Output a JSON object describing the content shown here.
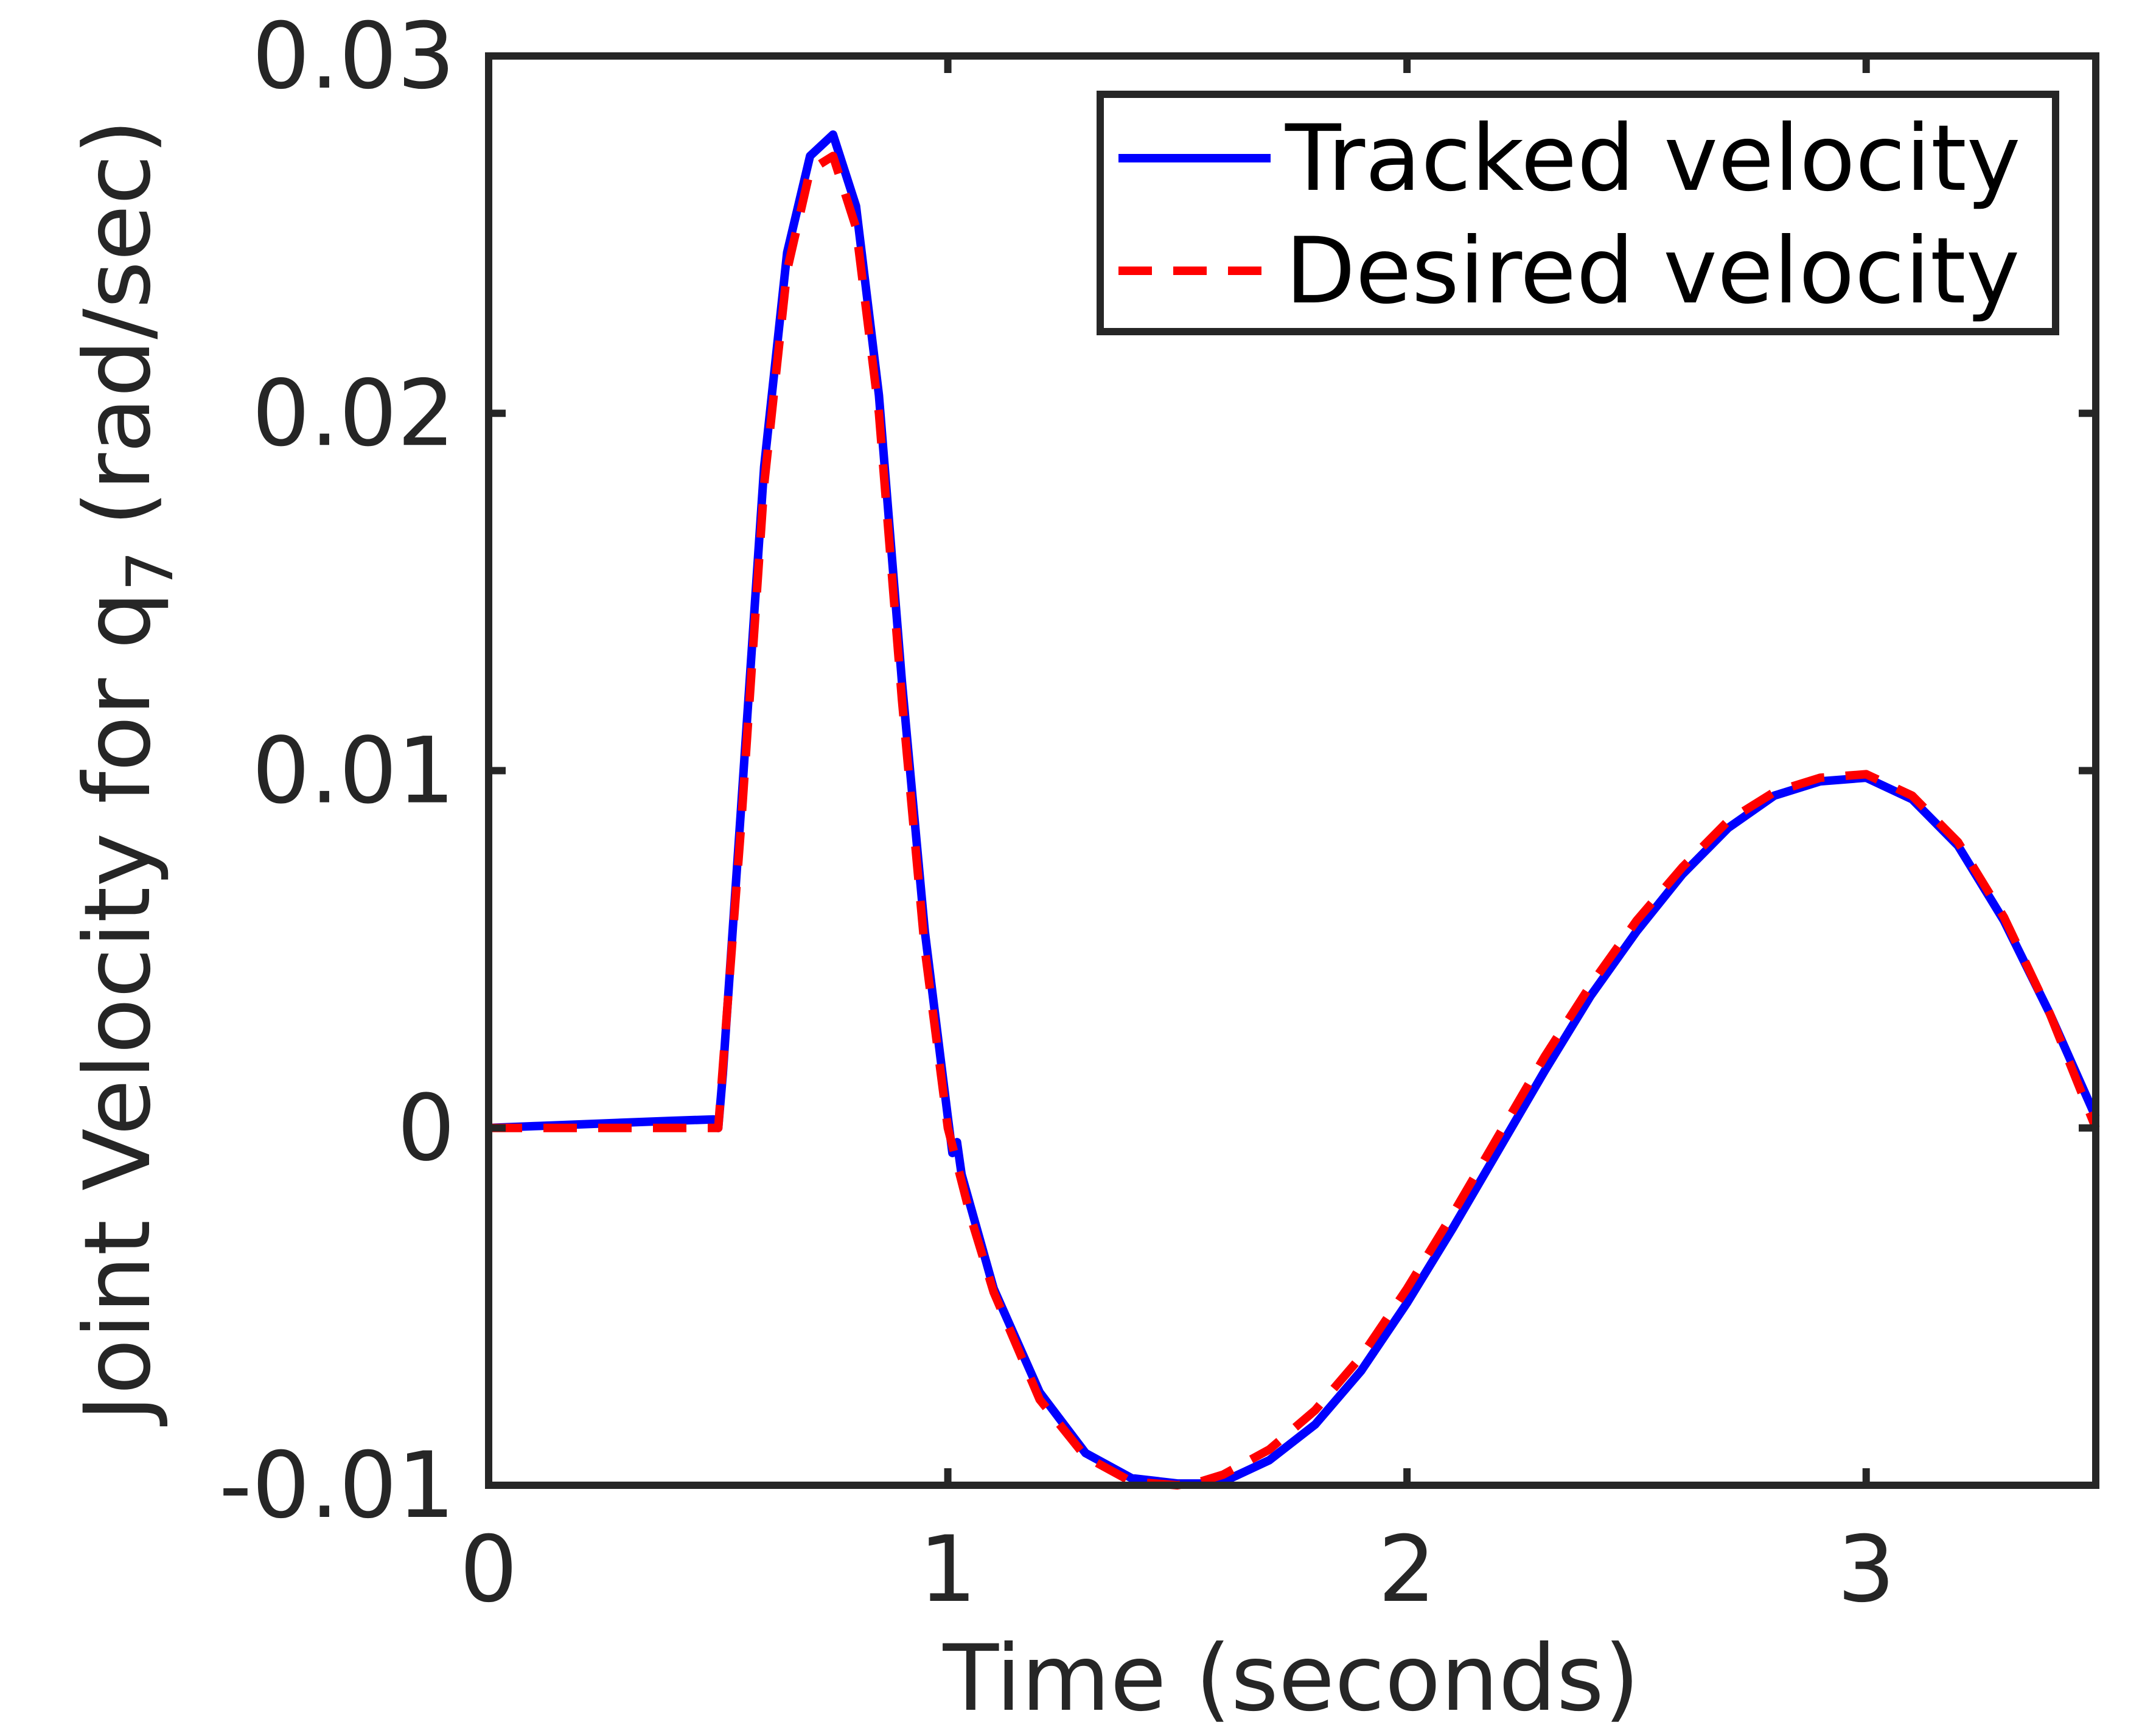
{
  "chart_data": {
    "type": "line",
    "title": "",
    "xlabel": "Time (seconds)",
    "ylabel_main": "Joint Velocity for q",
    "ylabel_sub": "7",
    "ylabel_units": "(rad/sec)",
    "xlim": [
      0,
      3.5
    ],
    "ylim": [
      -0.01,
      0.03
    ],
    "xticks": [
      0,
      1,
      2,
      3
    ],
    "xtick_labels": [
      "0",
      "1",
      "2",
      "3"
    ],
    "yticks": [
      -0.01,
      0,
      0.01,
      0.02,
      0.03
    ],
    "ytick_labels": [
      "-0.01",
      "0",
      "0.01",
      "0.02",
      "0.03"
    ],
    "grid": false,
    "legend_position": "top-right",
    "series": [
      {
        "name": "Tracked velocity",
        "color": "#0000ff",
        "style": "solid",
        "x": [
          0,
          0.1,
          0.2,
          0.3,
          0.4,
          0.49,
          0.5,
          0.51,
          0.55,
          0.6,
          0.65,
          0.7,
          0.75,
          0.8,
          0.85,
          0.9,
          0.95,
          1.0,
          1.01,
          1.02,
          1.03,
          1.1,
          1.2,
          1.3,
          1.4,
          1.5,
          1.55,
          1.6,
          1.7,
          1.8,
          1.9,
          2.0,
          2.1,
          2.2,
          2.3,
          2.4,
          2.5,
          2.6,
          2.7,
          2.8,
          2.9,
          3.0,
          3.1,
          3.2,
          3.3,
          3.4,
          3.5
        ],
        "y": [
          0.0,
          5e-05,
          0.0001,
          0.00015,
          0.0002,
          0.00024,
          0.0,
          0.0015,
          0.009,
          0.0185,
          0.0245,
          0.0272,
          0.0278,
          0.0258,
          0.0205,
          0.0125,
          0.0055,
          0.0003,
          -0.0007,
          -0.0004,
          -0.0013,
          -0.0045,
          -0.0074,
          -0.0091,
          -0.0098,
          -0.00995,
          -0.00995,
          -0.0099,
          -0.0093,
          -0.0083,
          -0.0068,
          -0.0049,
          -0.0028,
          -0.0006,
          0.0016,
          0.0037,
          0.0055,
          0.0071,
          0.0084,
          0.0093,
          0.0097,
          0.0098,
          0.0092,
          0.0079,
          0.0058,
          0.0032,
          0.0003
        ]
      },
      {
        "name": "Desired velocity",
        "color": "#ff0000",
        "style": "dashed",
        "x": [
          0,
          0.1,
          0.2,
          0.3,
          0.4,
          0.5,
          0.55,
          0.6,
          0.65,
          0.7,
          0.75,
          0.8,
          0.85,
          0.9,
          0.95,
          1.0,
          1.05,
          1.1,
          1.2,
          1.3,
          1.4,
          1.5,
          1.55,
          1.6,
          1.7,
          1.8,
          1.9,
          2.0,
          2.1,
          2.2,
          2.3,
          2.4,
          2.5,
          2.6,
          2.7,
          2.8,
          2.9,
          3.0,
          3.1,
          3.2,
          3.3,
          3.4,
          3.5
        ],
        "y": [
          0,
          0,
          0,
          0,
          0,
          0,
          0.0085,
          0.018,
          0.024,
          0.0268,
          0.0272,
          0.0252,
          0.02,
          0.012,
          0.005,
          0.0,
          -0.0025,
          -0.0046,
          -0.0076,
          -0.0092,
          -0.0099,
          -0.01,
          -0.0099,
          -0.0097,
          -0.009,
          -0.0079,
          -0.0064,
          -0.0045,
          -0.0024,
          -0.0002,
          0.002,
          0.004,
          0.0058,
          0.0073,
          0.0086,
          0.0094,
          0.0098,
          0.0099,
          0.0093,
          0.008,
          0.0059,
          0.0032,
          0.0
        ]
      }
    ]
  }
}
